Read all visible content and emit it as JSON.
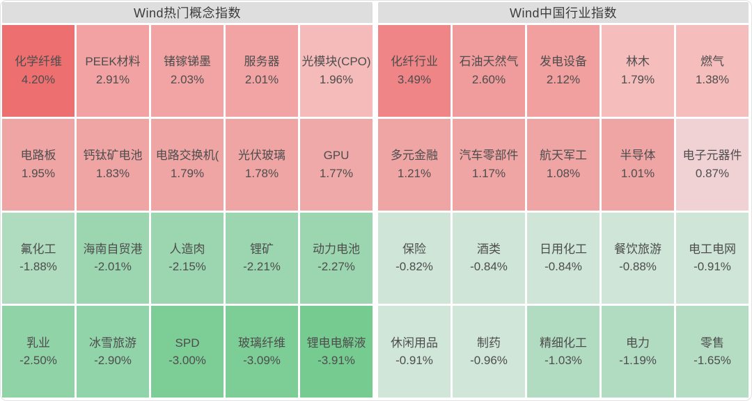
{
  "colors": {
    "header_bg": "#dedede",
    "header_text": "#3c3c3c",
    "cell_text": "#4d4d4d",
    "gain_strong": "#ed6f6f",
    "gain_mid": "#f0a5a5",
    "gain_weak": "#f6bdbd",
    "loss_weak": "#cee5d7",
    "loss_mid": "#9cd6b0",
    "loss_strong": "#76cb90"
  },
  "chart_data": [
    {
      "type": "heatmap",
      "title": "Wind热门概念指数",
      "columns": 5,
      "rows": 4,
      "value_unit": "%",
      "cells": [
        {
          "name": "化学纤维",
          "value": 4.2,
          "label": "4.20%",
          "color": "#ed6f6f"
        },
        {
          "name": "PEEK材料",
          "value": 2.91,
          "label": "2.91%",
          "color": "#f2a2a2"
        },
        {
          "name": "锗镓锑墨",
          "value": 2.03,
          "label": "2.03%",
          "color": "#f2a4a4"
        },
        {
          "name": "服务器",
          "value": 2.01,
          "label": "2.01%",
          "color": "#f2a4a4"
        },
        {
          "name": "光模块(CPO)",
          "value": 1.96,
          "label": "1.96%",
          "color": "#f5baba"
        },
        {
          "name": "电路板",
          "value": 1.95,
          "label": "1.95%",
          "color": "#f0a5a5"
        },
        {
          "name": "钙钛矿电池",
          "value": 1.83,
          "label": "1.83%",
          "color": "#f0a5a5"
        },
        {
          "name": "电路交换机(",
          "value": 1.79,
          "label": "1.79%",
          "color": "#f0a5a5"
        },
        {
          "name": "光伏玻璃",
          "value": 1.78,
          "label": "1.78%",
          "color": "#f0a5a5"
        },
        {
          "name": "GPU",
          "value": 1.77,
          "label": "1.77%",
          "color": "#f0a9a9"
        },
        {
          "name": "氟化工",
          "value": -1.88,
          "label": "-1.88%",
          "color": "#afdbbf"
        },
        {
          "name": "海南自贸港",
          "value": -2.01,
          "label": "-2.01%",
          "color": "#9cd6b0"
        },
        {
          "name": "人造肉",
          "value": -2.15,
          "label": "-2.15%",
          "color": "#9cd6b0"
        },
        {
          "name": "锂矿",
          "value": -2.21,
          "label": "-2.21%",
          "color": "#9cd6b0"
        },
        {
          "name": "动力电池",
          "value": -2.27,
          "label": "-2.27%",
          "color": "#9cd6b0"
        },
        {
          "name": "乳业",
          "value": -2.5,
          "label": "-2.50%",
          "color": "#90d3a7"
        },
        {
          "name": "冰雪旅游",
          "value": -2.9,
          "label": "-2.90%",
          "color": "#92d4a9"
        },
        {
          "name": "SPD",
          "value": -3.0,
          "label": "-3.00%",
          "color": "#7ccd96"
        },
        {
          "name": "玻璃纤维",
          "value": -3.09,
          "label": "-3.09%",
          "color": "#7ccd96"
        },
        {
          "name": "锂电电解液",
          "value": -3.91,
          "label": "-3.91%",
          "color": "#76cb90"
        }
      ]
    },
    {
      "type": "heatmap",
      "title": "Wind中国行业指数",
      "columns": 5,
      "rows": 4,
      "value_unit": "%",
      "cells": [
        {
          "name": "化纤行业",
          "value": 3.49,
          "label": "3.49%",
          "color": "#ef8586"
        },
        {
          "name": "石油天然气",
          "value": 2.6,
          "label": "2.60%",
          "color": "#f19c9c"
        },
        {
          "name": "发电设备",
          "value": 2.12,
          "label": "2.12%",
          "color": "#f19f9f"
        },
        {
          "name": "林木",
          "value": 1.79,
          "label": "1.79%",
          "color": "#f6bdbd"
        },
        {
          "name": "燃气",
          "value": 1.38,
          "label": "1.38%",
          "color": "#f6bdbd"
        },
        {
          "name": "多元金融",
          "value": 1.21,
          "label": "1.21%",
          "color": "#f0a5a5"
        },
        {
          "name": "汽车零部件",
          "value": 1.17,
          "label": "1.17%",
          "color": "#f0a5a5"
        },
        {
          "name": "航天军工",
          "value": 1.08,
          "label": "1.08%",
          "color": "#f0a5a5"
        },
        {
          "name": "半导体",
          "value": 1.01,
          "label": "1.01%",
          "color": "#f0a5a5"
        },
        {
          "name": "电子元器件",
          "value": 0.87,
          "label": "0.87%",
          "color": "#f1d2d4"
        },
        {
          "name": "保险",
          "value": -0.82,
          "label": "-0.82%",
          "color": "#cee5d7"
        },
        {
          "name": "酒类",
          "value": -0.84,
          "label": "-0.84%",
          "color": "#cee5d7"
        },
        {
          "name": "日用化工",
          "value": -0.84,
          "label": "-0.84%",
          "color": "#cee5d7"
        },
        {
          "name": "餐饮旅游",
          "value": -0.88,
          "label": "-0.88%",
          "color": "#cee5d7"
        },
        {
          "name": "电工电网",
          "value": -0.91,
          "label": "-0.91%",
          "color": "#cee5d7"
        },
        {
          "name": "休闲用品",
          "value": -0.91,
          "label": "-0.91%",
          "color": "#cfe6d8"
        },
        {
          "name": "制药",
          "value": -0.96,
          "label": "-0.96%",
          "color": "#cfe6d8"
        },
        {
          "name": "精细化工",
          "value": -1.03,
          "label": "-1.03%",
          "color": "#b1dcc1"
        },
        {
          "name": "电力",
          "value": -1.19,
          "label": "-1.19%",
          "color": "#b1dcc1"
        },
        {
          "name": "零售",
          "value": -1.65,
          "label": "-1.65%",
          "color": "#b4ddc3"
        }
      ]
    }
  ]
}
